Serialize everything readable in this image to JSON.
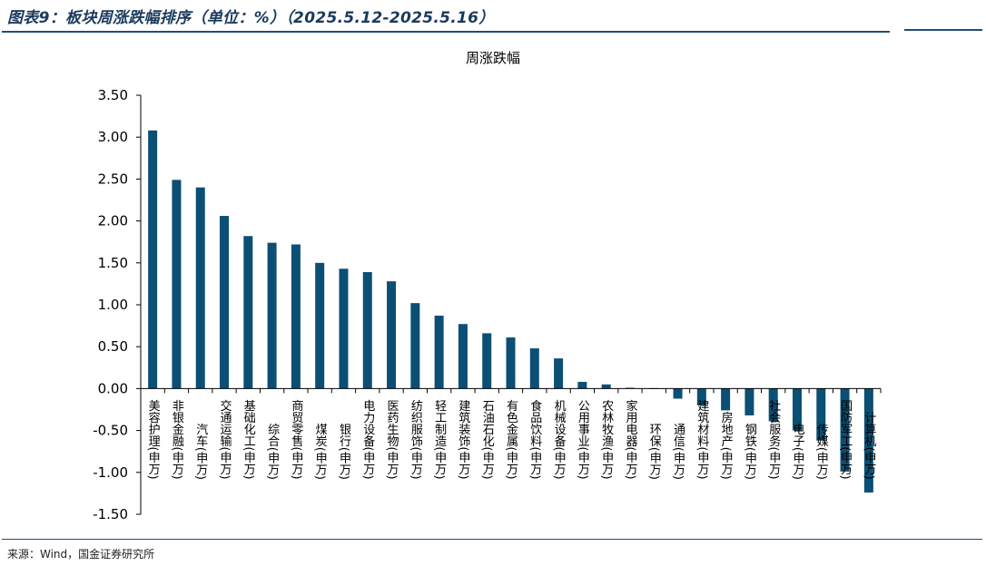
{
  "header": {
    "title": "图表9：板块周涨跌幅排序（单位：%）（2025.5.12-2025.5.16）"
  },
  "source": "来源：Wind，国金证券研究所",
  "colors": {
    "bar": "#0b4f74",
    "rule": "#1f4e79"
  },
  "chart_data": {
    "type": "bar",
    "title": "周涨跌幅",
    "xlabel": "",
    "ylabel": "",
    "ylim": [
      -1.5,
      3.5
    ],
    "yticks": [
      "3.50",
      "3.00",
      "2.50",
      "2.00",
      "1.50",
      "1.00",
      "0.50",
      "0.00",
      "-0.50",
      "-1.00",
      "-1.50"
    ],
    "grid": false,
    "categories": [
      "美容护理(申万)",
      "非银金融(申万)",
      "汽车(申万)",
      "交通运输(申万)",
      "基础化工(申万)",
      "综合(申万)",
      "商贸零售(申万)",
      "煤炭(申万)",
      "银行(申万)",
      "电力设备(申万)",
      "医药生物(申万)",
      "纺织服饰(申万)",
      "轻工制造(申万)",
      "建筑装饰(申万)",
      "石油石化(申万)",
      "有色金属(申万)",
      "食品饮料(申万)",
      "机械设备(申万)",
      "公用事业(申万)",
      "农林牧渔(申万)",
      "家用电器(申万)",
      "环保(申万)",
      "通信(申万)",
      "建筑材料(申万)",
      "房地产(申万)",
      "钢铁(申万)",
      "社会服务(申万)",
      "电子(申万)",
      "传媒(申万)",
      "国防军工(申万)",
      "计算机(申万)"
    ],
    "values": [
      3.08,
      2.49,
      2.4,
      2.06,
      1.82,
      1.74,
      1.72,
      1.5,
      1.43,
      1.39,
      1.28,
      1.02,
      0.87,
      0.77,
      0.66,
      0.61,
      0.48,
      0.36,
      0.08,
      0.05,
      0.01,
      0.005,
      -0.12,
      -0.2,
      -0.26,
      -0.32,
      -0.39,
      -0.5,
      -0.62,
      -0.99,
      -1.24
    ]
  }
}
